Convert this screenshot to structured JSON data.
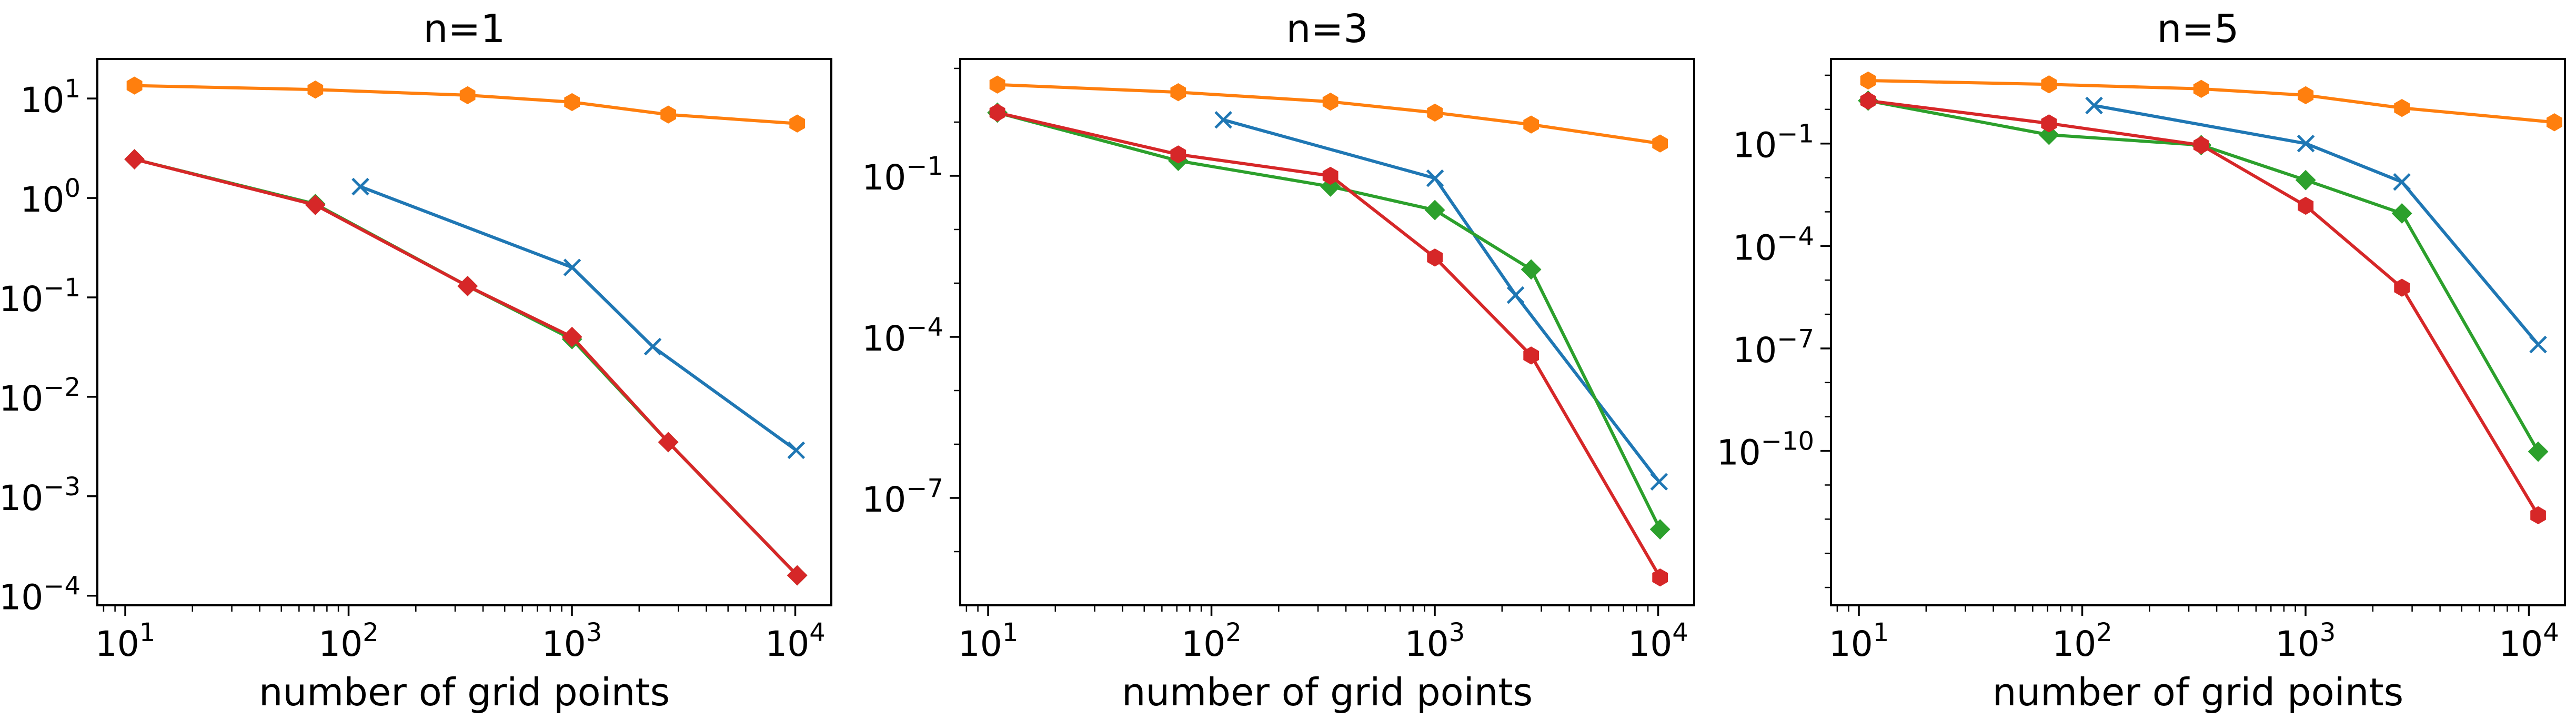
{
  "chart_data": [
    {
      "type": "line",
      "title": "n=1",
      "xlabel": "number of grid points",
      "ylabel": "",
      "xscale": "log",
      "yscale": "log",
      "xlim": [
        7.5,
        14500
      ],
      "ylim": [
        8e-05,
        25
      ],
      "xticks": [
        {
          "base": "10",
          "exp": "1",
          "value": 10
        },
        {
          "base": "10",
          "exp": "2",
          "value": 100
        },
        {
          "base": "10",
          "exp": "3",
          "value": 1000
        },
        {
          "base": "10",
          "exp": "4",
          "value": 10000
        }
      ],
      "yticks": [
        {
          "base": "10",
          "exp": "1",
          "value": 10
        },
        {
          "base": "10",
          "exp": "0",
          "value": 1
        },
        {
          "base": "10",
          "exp": "−1",
          "value": 0.1
        },
        {
          "base": "10",
          "exp": "−2",
          "value": 0.01
        },
        {
          "base": "10",
          "exp": "−3",
          "value": 0.001
        },
        {
          "base": "10",
          "exp": "−4",
          "value": 0.0001
        }
      ],
      "grid": false,
      "series": [
        {
          "color": "#ff7f0e",
          "marker": "hexagon",
          "x": [
            11,
            71,
            341,
            1001,
            2700,
            10200
          ],
          "y": [
            13.5,
            12.3,
            10.8,
            9.2,
            6.9,
            5.6
          ]
        },
        {
          "color": "#1f77b4",
          "marker": "x",
          "x": [
            113,
            1003,
            2300,
            10100
          ],
          "y": [
            1.3,
            0.2,
            0.032,
            0.0029
          ]
        },
        {
          "color": "#2ca02c",
          "marker": "diamond",
          "x": [
            11,
            71,
            341,
            1001,
            2700,
            10200
          ],
          "y": [
            2.45,
            0.87,
            0.13,
            0.038,
            0.0035,
            0.00016
          ]
        },
        {
          "color": "#d62728",
          "marker": "diamond",
          "x": [
            11,
            71,
            341,
            1001,
            2700,
            10200
          ],
          "y": [
            2.45,
            0.85,
            0.13,
            0.04,
            0.0035,
            0.00016
          ]
        }
      ]
    },
    {
      "type": "line",
      "title": "n=3",
      "xlabel": "number of grid points",
      "ylabel": "",
      "xscale": "log",
      "yscale": "log",
      "xlim": [
        7.5,
        14500
      ],
      "ylim": [
        1e-09,
        15
      ],
      "xticks": [
        {
          "base": "10",
          "exp": "1",
          "value": 10
        },
        {
          "base": "10",
          "exp": "2",
          "value": 100
        },
        {
          "base": "10",
          "exp": "3",
          "value": 1000
        },
        {
          "base": "10",
          "exp": "4",
          "value": 10000
        }
      ],
      "yticks": [
        {
          "base": "10",
          "exp": "−1",
          "value": 0.1
        },
        {
          "base": "10",
          "exp": "−4",
          "value": 0.0001
        },
        {
          "base": "10",
          "exp": "−7",
          "value": 1e-07
        }
      ],
      "grid": false,
      "series": [
        {
          "color": "#ff7f0e",
          "marker": "hexagon",
          "x": [
            11,
            71,
            341,
            1001,
            2700,
            10200
          ],
          "y": [
            5.0,
            3.6,
            2.4,
            1.5,
            0.9,
            0.4
          ]
        },
        {
          "color": "#1f77b4",
          "marker": "x",
          "x": [
            113,
            1003,
            2300,
            10100
          ],
          "y": [
            1.1,
            0.09,
            0.0006,
            2e-07
          ]
        },
        {
          "color": "#2ca02c",
          "marker": "diamond",
          "x": [
            11,
            71,
            341,
            1001,
            2700,
            10200
          ],
          "y": [
            1.5,
            0.19,
            0.063,
            0.023,
            0.0018,
            2.6e-08
          ]
        },
        {
          "color": "#d62728",
          "marker": "hexagon",
          "x": [
            11,
            71,
            341,
            1001,
            2700,
            10200
          ],
          "y": [
            1.5,
            0.25,
            0.1,
            0.003,
            4.5e-05,
            3.3e-09
          ]
        }
      ]
    },
    {
      "type": "line",
      "title": "n=5",
      "xlabel": "number of grid points",
      "ylabel": "",
      "xscale": "log",
      "yscale": "log",
      "xlim": [
        7.5,
        14500
      ],
      "ylim": [
        3e-15,
        30
      ],
      "xticks": [
        {
          "base": "10",
          "exp": "1",
          "value": 10
        },
        {
          "base": "10",
          "exp": "2",
          "value": 100
        },
        {
          "base": "10",
          "exp": "3",
          "value": 1000
        },
        {
          "base": "10",
          "exp": "4",
          "value": 10000
        }
      ],
      "yticks": [
        {
          "base": "10",
          "exp": "−1",
          "value": 0.1
        },
        {
          "base": "10",
          "exp": "−4",
          "value": 0.0001
        },
        {
          "base": "10",
          "exp": "−7",
          "value": 1e-07
        },
        {
          "base": "10",
          "exp": "−10",
          "value": 1e-10
        }
      ],
      "grid": false,
      "series": [
        {
          "color": "#ff7f0e",
          "marker": "hexagon",
          "x": [
            11,
            71,
            341,
            1001,
            2700,
            13000
          ],
          "y": [
            7.0,
            5.4,
            4.0,
            2.6,
            1.1,
            0.42
          ]
        },
        {
          "color": "#1f77b4",
          "marker": "x",
          "x": [
            113,
            1003,
            2700,
            11000
          ],
          "y": [
            1.3,
            0.1,
            0.0075,
            1.3e-07
          ]
        },
        {
          "color": "#2ca02c",
          "marker": "diamond",
          "x": [
            11,
            71,
            341,
            1001,
            2700,
            11000
          ],
          "y": [
            1.8,
            0.18,
            0.09,
            0.0085,
            0.0009,
            9.5e-11
          ]
        },
        {
          "color": "#d62728",
          "marker": "hexagon",
          "x": [
            11,
            71,
            341,
            1001,
            2700,
            11000
          ],
          "y": [
            1.8,
            0.39,
            0.09,
            0.0015,
            6e-06,
            1.3e-12
          ]
        }
      ]
    }
  ]
}
